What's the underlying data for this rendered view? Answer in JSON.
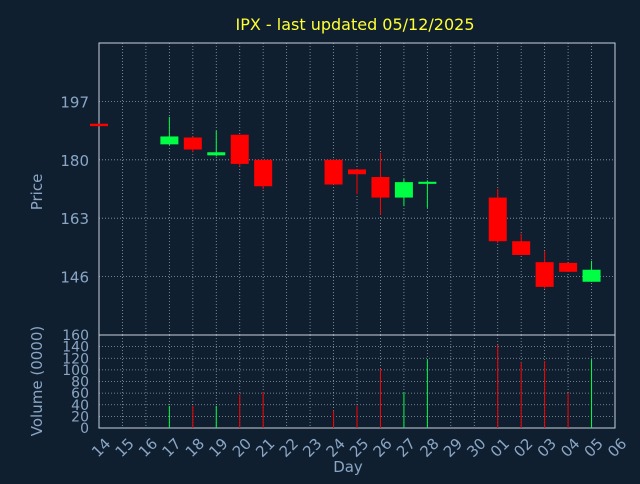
{
  "title": "IPX - last updated 05/12/2025",
  "colors": {
    "background": "#0f1f30",
    "frame": "#c8d2dc",
    "grid": "#c8d2dc",
    "title": "#ffff33",
    "axis_label": "#8aa6c4",
    "tick_label": "#8aa6c4",
    "up": "#00ff44",
    "down": "#ff0000"
  },
  "chart_data": [
    {
      "type": "candlestick",
      "ylabel": "Price",
      "ylim": [
        129,
        214
      ],
      "yticks": [
        146,
        163,
        180,
        197
      ],
      "grid": true,
      "x": [
        "14",
        "15",
        "16",
        "17",
        "18",
        "19",
        "20",
        "21",
        "22",
        "23",
        "24",
        "25",
        "26",
        "27",
        "28",
        "29",
        "30",
        "01",
        "02",
        "03",
        "04",
        "05",
        "06"
      ],
      "candles": [
        {
          "day": "14",
          "open": 190.5,
          "high": 190.5,
          "low": 189.8,
          "close": 189.8
        },
        {
          "day": "17",
          "open": 184.5,
          "high": 192.5,
          "low": 184.3,
          "close": 186.8
        },
        {
          "day": "18",
          "open": 186.5,
          "high": 186.8,
          "low": 182.2,
          "close": 183.0
        },
        {
          "day": "19",
          "open": 181.3,
          "high": 188.5,
          "low": 181.0,
          "close": 182.2
        },
        {
          "day": "20",
          "open": 187.3,
          "high": 187.3,
          "low": 178.0,
          "close": 178.8
        },
        {
          "day": "21",
          "open": 180.0,
          "high": 180.0,
          "low": 171.5,
          "close": 172.3
        },
        {
          "day": "24",
          "open": 180.0,
          "high": 180.0,
          "low": 172.8,
          "close": 172.8
        },
        {
          "day": "25",
          "open": 177.2,
          "high": 177.2,
          "low": 170.0,
          "close": 175.8
        },
        {
          "day": "26",
          "open": 175.0,
          "high": 182.0,
          "low": 164.0,
          "close": 169.0
        },
        {
          "day": "27",
          "open": 169.0,
          "high": 174.5,
          "low": 166.5,
          "close": 173.5
        },
        {
          "day": "28",
          "open": 173.0,
          "high": 174.0,
          "low": 166.0,
          "close": 173.6
        },
        {
          "day": "01",
          "open": 169.0,
          "high": 171.5,
          "low": 155.8,
          "close": 156.3
        },
        {
          "day": "02",
          "open": 156.3,
          "high": 158.5,
          "low": 152.3,
          "close": 152.3
        },
        {
          "day": "03",
          "open": 150.2,
          "high": 153.5,
          "low": 142.5,
          "close": 143.0
        },
        {
          "day": "04",
          "open": 150.0,
          "high": 150.0,
          "low": 147.4,
          "close": 147.4
        },
        {
          "day": "05",
          "open": 144.5,
          "high": 150.6,
          "low": 144.5,
          "close": 148.0
        }
      ]
    },
    {
      "type": "bar",
      "xlabel": "Day",
      "ylabel": "Volume (0000)",
      "ylim": [
        0,
        160
      ],
      "yticks": [
        0,
        20,
        40,
        60,
        80,
        100,
        120,
        140,
        160
      ],
      "grid": true,
      "categories": [
        "14",
        "15",
        "16",
        "17",
        "18",
        "19",
        "20",
        "21",
        "22",
        "23",
        "24",
        "25",
        "26",
        "27",
        "28",
        "29",
        "30",
        "01",
        "02",
        "03",
        "04",
        "05",
        "06"
      ],
      "values": [
        0,
        0,
        0,
        38,
        38,
        38,
        58,
        62,
        0,
        0,
        30,
        38,
        102,
        62,
        118,
        0,
        0,
        143,
        113,
        115,
        60,
        118,
        0
      ]
    }
  ]
}
